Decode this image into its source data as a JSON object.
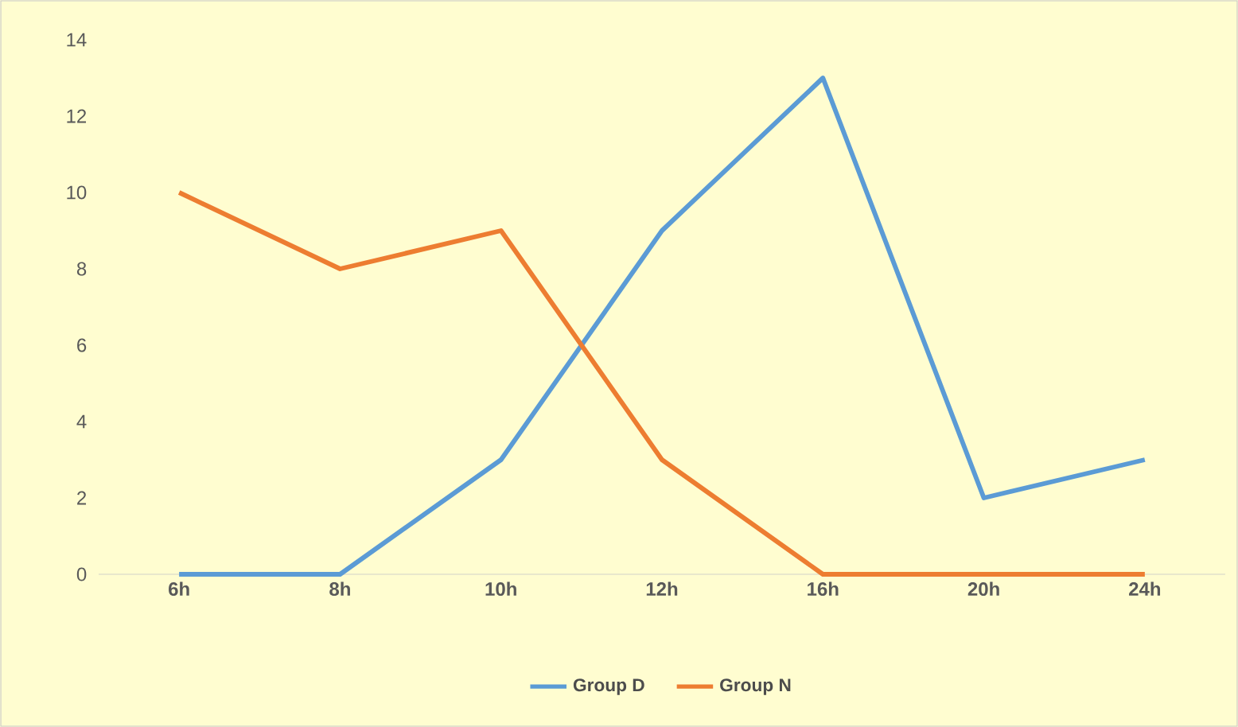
{
  "chart_data": {
    "type": "line",
    "categories": [
      "6h",
      "8h",
      "10h",
      "12h",
      "16h",
      "20h",
      "24h"
    ],
    "series": [
      {
        "name": "Group D",
        "color": "#5b9bd5",
        "values": [
          0,
          0,
          3,
          9,
          13,
          2,
          3
        ]
      },
      {
        "name": "Group N",
        "color": "#ed7d31",
        "values": [
          10,
          8,
          9,
          3,
          0,
          0,
          0
        ]
      }
    ],
    "ylim": [
      0,
      14
    ],
    "yticks": [
      0,
      2,
      4,
      6,
      8,
      10,
      12,
      14
    ],
    "grid": false,
    "legend": "bottom"
  }
}
